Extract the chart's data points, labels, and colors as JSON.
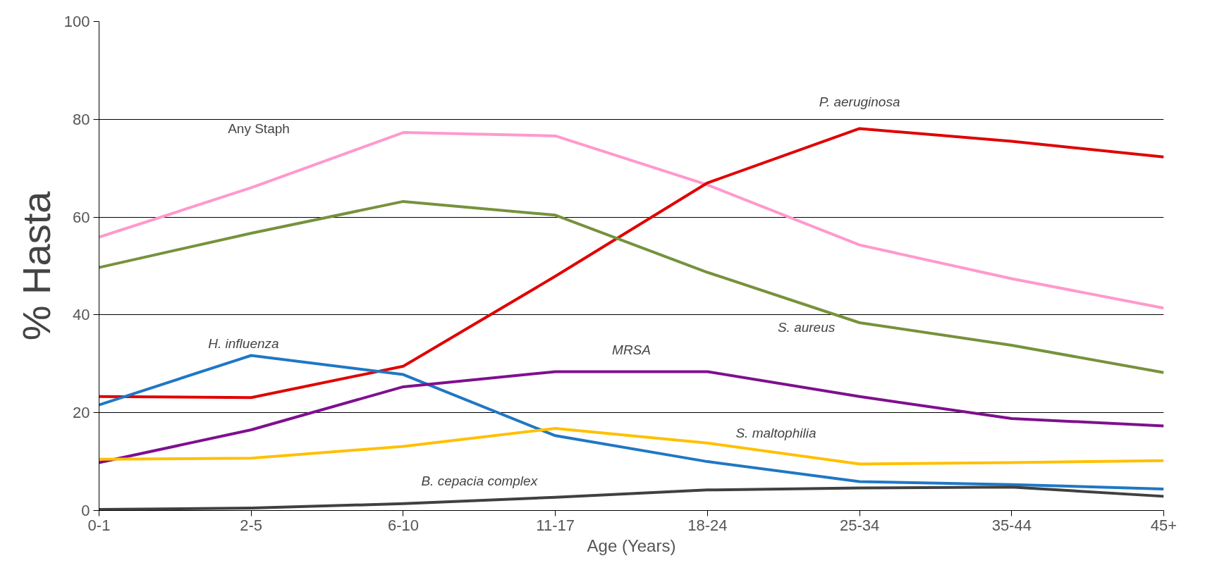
{
  "chart_data": {
    "type": "line",
    "xlabel": "Age (Years)",
    "ylabel": "% Hasta",
    "categories": [
      "0-1",
      "2-5",
      "6-10",
      "11-17",
      "18-24",
      "25-34",
      "35-44",
      "45+"
    ],
    "ylim": [
      0,
      100
    ],
    "yticks": [
      0,
      20,
      40,
      60,
      80,
      100
    ],
    "grid": "y",
    "marker": "none",
    "line_style": "solid",
    "series": [
      {
        "name": "Any Staph",
        "color": "#ff99cc",
        "values": [
          55.9,
          66,
          77.3,
          76.6,
          66.6,
          54.3,
          47.4,
          41.4
        ]
      },
      {
        "name": "P. aeruginosa",
        "color": "#e00000",
        "values": [
          23.3,
          23.1,
          29.5,
          47.9,
          67,
          78.1,
          75.5,
          72.3
        ]
      },
      {
        "name": "S. aureus",
        "color": "#76923c",
        "values": [
          49.7,
          56.7,
          63.2,
          60.4,
          48.7,
          38.4,
          33.8,
          28.2
        ]
      },
      {
        "name": "H. influenza",
        "color": "#1f77c4",
        "values": [
          21.6,
          31.7,
          27.8,
          15.3,
          10,
          5.9,
          5.3,
          4.4
        ]
      },
      {
        "name": "MRSA",
        "color": "#7f0f8f",
        "values": [
          9.8,
          16.5,
          25.3,
          28.4,
          28.4,
          23.3,
          18.8,
          17.3
        ]
      },
      {
        "name": "S. maltophilia",
        "color": "#ffc000",
        "values": [
          10.5,
          10.7,
          13.1,
          16.8,
          13.8,
          9.5,
          9.8,
          10.2
        ]
      },
      {
        "name": "B. cepacia complex",
        "color": "#404040",
        "values": [
          0.2,
          0.5,
          1.4,
          2.7,
          4.2,
          4.6,
          4.8,
          2.9
        ]
      }
    ]
  }
}
